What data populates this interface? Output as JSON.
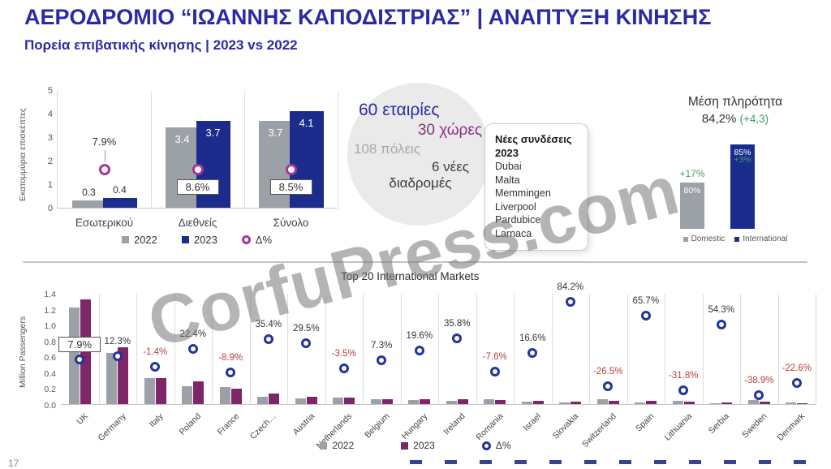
{
  "header": {
    "title": "ΑΕΡΟΔΡΟΜΙΟ “ΙΩΑΝΝΗΣ ΚΑΠΟΔΙΣΤΡΙΑΣ” | ΑΝΑΠΤΥΞΗ ΚΙΝΗΣΗΣ",
    "subtitle": "Πορεία επιβατικής κίνησης | 2023 vs 2022"
  },
  "colors": {
    "navy": "#1B2C8C",
    "purple": "#7D2668",
    "gray": "#9CA1A8",
    "magenta_ring": "#A93493",
    "navy_ring": "#23349B",
    "red": "#B5413D",
    "green": "#3BA169",
    "title_navy": "#2A2AA3"
  },
  "bubble": {
    "line1": "60 εταιρίες",
    "line2": "30 χώρες",
    "line3": "108 πόλεις",
    "line4": "6 νέες",
    "line5": "διαδρομές"
  },
  "new_connections": {
    "heading_line1": "Νέες συνδέσεις",
    "heading_line2": "2023",
    "items": [
      "Dubai",
      "Malta",
      "Memmingen",
      "Liverpool",
      "Pardubice",
      "Larnaca"
    ]
  },
  "watermark": "CorfuPress.com",
  "page_number": "17",
  "chart_data": [
    {
      "id": "passenger-traffic-by-segment",
      "type": "bar",
      "title": "",
      "ylabel": "Εκατομμύρια επισκέπτες",
      "ylim": [
        0,
        5
      ],
      "yticks": [
        "0",
        "1",
        "2",
        "3",
        "4",
        "5"
      ],
      "categories": [
        "Εσωτερικού",
        "Διεθνείς",
        "Σύνολο"
      ],
      "series": [
        {
          "name": "2022",
          "values": [
            0.3,
            3.4,
            3.7
          ]
        },
        {
          "name": "2023",
          "values": [
            0.4,
            3.7,
            4.1
          ]
        }
      ],
      "delta_labels": [
        "7.9%",
        "8.6%",
        "8.5%"
      ],
      "legend": [
        "2022",
        "2023",
        "Δ%"
      ],
      "legend_position": "bottom",
      "grid": "vertical-only"
    },
    {
      "id": "average-load-factor",
      "type": "bar",
      "title": "Μέση πληρότητα",
      "average_value": "84,2%",
      "average_delta": "(+4,3)",
      "categories": [
        "Domestic",
        "International"
      ],
      "values": [
        80,
        85
      ],
      "bar_labels": [
        "80%",
        "85%"
      ],
      "delta_labels": [
        "+17%",
        "+3%"
      ],
      "legend": [
        "Domestic",
        "International"
      ]
    },
    {
      "id": "top-20-international-markets",
      "type": "bar",
      "title": "Top 20 International Markets",
      "ylabel": "Million Passengers",
      "ylim": [
        0,
        1.4
      ],
      "yticks": [
        "0.0",
        "0.2",
        "0.4",
        "0.6",
        "0.8",
        "1.0",
        "1.2",
        "1.4"
      ],
      "categories": [
        "UK",
        "Germany",
        "Italy",
        "Poland",
        "France",
        "Czech…",
        "Austria",
        "Netherlands",
        "Belgium",
        "Hungary",
        "Ireland",
        "Romania",
        "Israel",
        "Slovakia",
        "Switzerland",
        "Spain",
        "Lithuania",
        "Serbia",
        "Sweden",
        "Denmark"
      ],
      "series": [
        {
          "name": "2022",
          "values": [
            1.22,
            0.64,
            0.33,
            0.23,
            0.21,
            0.095,
            0.07,
            0.085,
            0.06,
            0.05,
            0.045,
            0.06,
            0.035,
            0.019,
            0.06,
            0.025,
            0.04,
            0.013,
            0.05,
            0.02
          ]
        },
        {
          "name": "2023",
          "values": [
            1.32,
            0.72,
            0.325,
            0.282,
            0.191,
            0.129,
            0.091,
            0.082,
            0.064,
            0.06,
            0.061,
            0.055,
            0.041,
            0.035,
            0.044,
            0.041,
            0.027,
            0.02,
            0.031,
            0.015
          ]
        }
      ],
      "delta_pct": [
        7.9,
        12.3,
        -1.4,
        22.4,
        -8.9,
        35.4,
        29.5,
        -3.5,
        7.3,
        19.6,
        35.8,
        -7.6,
        16.6,
        84.2,
        -26.5,
        65.7,
        -31.8,
        54.3,
        -38.9,
        -22.6
      ],
      "legend": [
        "2022",
        "2023",
        "Δ%"
      ],
      "legend_position": "bottom",
      "grid": "vertical-only"
    }
  ]
}
